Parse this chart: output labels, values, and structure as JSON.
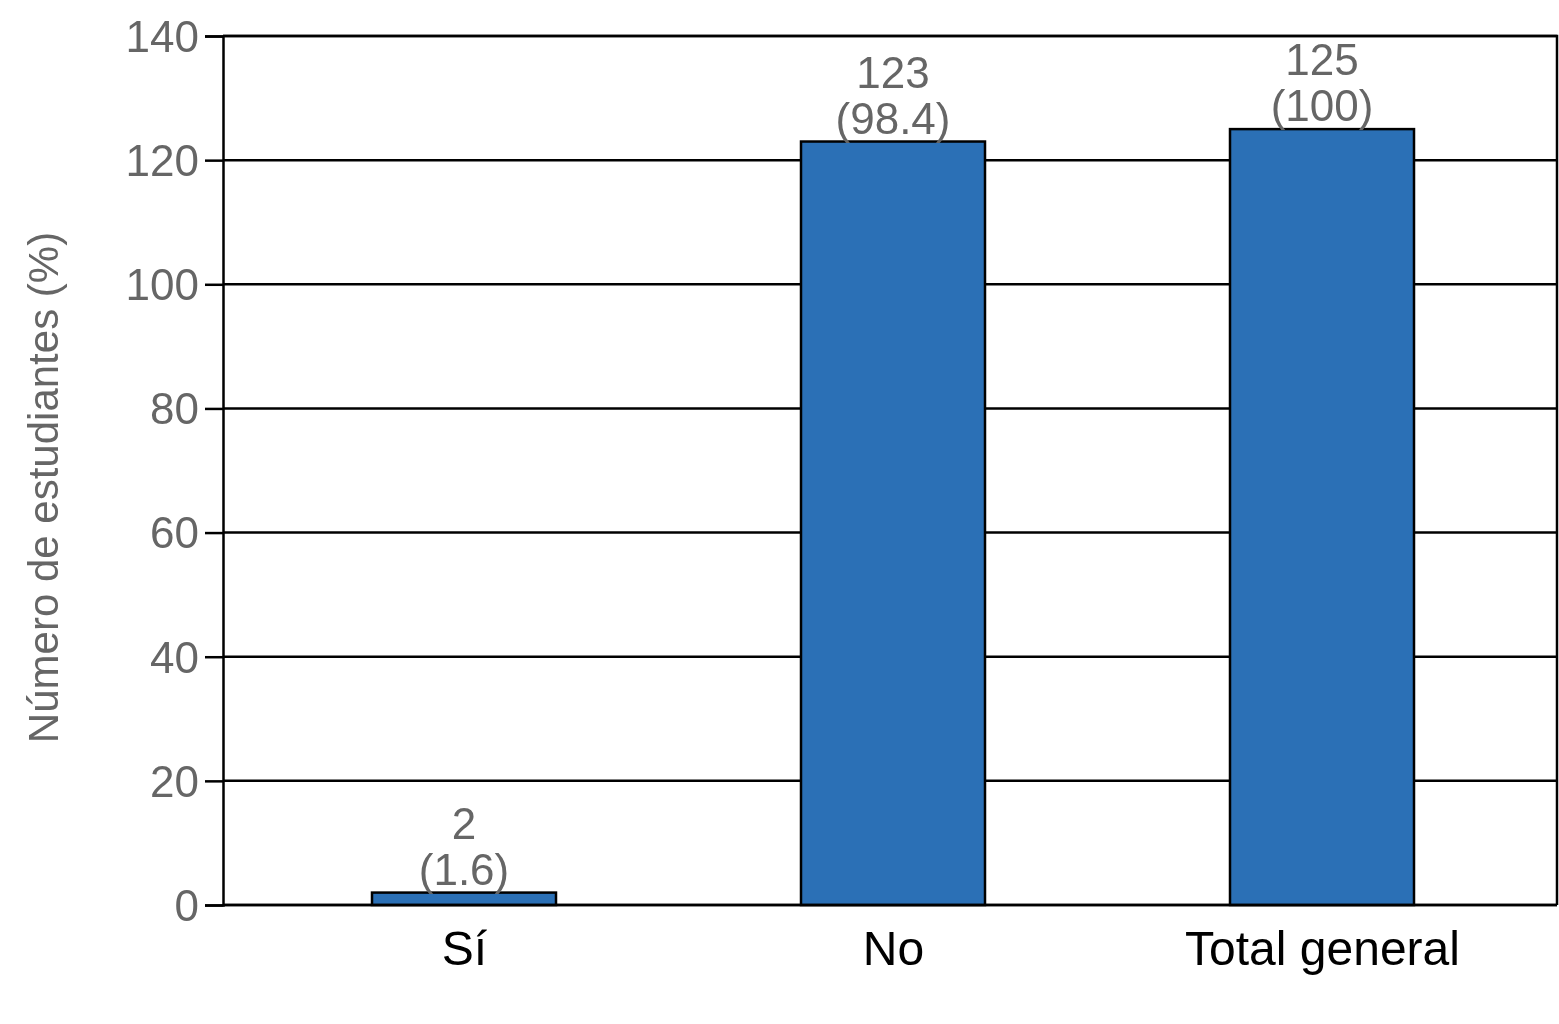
{
  "chart_data": {
    "type": "bar",
    "ylabel": "Número de estudiantes (%)",
    "categories": [
      "Sí",
      "No",
      "Total general"
    ],
    "values": [
      2,
      123,
      125
    ],
    "value_labels": [
      "2\n(1.6)",
      "123\n(98.4)",
      "125\n(100)"
    ],
    "color": "#2b70b6",
    "ylim": [
      0,
      140
    ],
    "yticks": [
      0,
      20,
      40,
      60,
      80,
      100,
      120,
      140
    ],
    "grid": "y"
  }
}
